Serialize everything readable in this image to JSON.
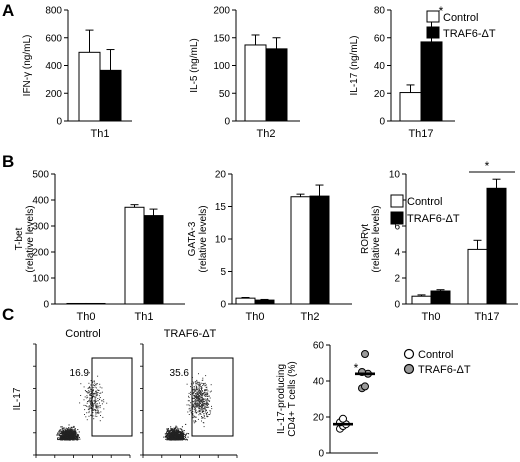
{
  "panels": {
    "a": "A",
    "b": "B",
    "c": "C"
  },
  "legend": {
    "control": "Control",
    "traf6": "TRAF6-ΔT"
  },
  "colors": {
    "control": "#ffffff",
    "traf6": "#000000",
    "axis": "#000000",
    "dot_control": "#ffffff",
    "dot_traf6": "#9a9a9a"
  },
  "chart_data": [
    {
      "type": "bar",
      "panel": "A",
      "ylabel": "IFN-γ (ng/mL)",
      "ylim": [
        0,
        800
      ],
      "yticks": [
        0,
        200,
        400,
        600,
        800
      ],
      "categories": [
        "Th1"
      ],
      "series": [
        {
          "name": "Control",
          "values": [
            495
          ],
          "errors": [
            160
          ]
        },
        {
          "name": "TRAF6-ΔT",
          "values": [
            365
          ],
          "errors": [
            150
          ]
        }
      ]
    },
    {
      "type": "bar",
      "panel": "A",
      "ylabel": "IL-5 (ng/mL)",
      "ylim": [
        0,
        200
      ],
      "yticks": [
        0,
        50,
        100,
        150,
        200
      ],
      "categories": [
        "Th2"
      ],
      "series": [
        {
          "name": "Control",
          "values": [
            137
          ],
          "errors": [
            18
          ]
        },
        {
          "name": "TRAF6-ΔT",
          "values": [
            130
          ],
          "errors": [
            20
          ]
        }
      ]
    },
    {
      "type": "bar",
      "panel": "A",
      "ylabel": "IL-17 (ng/mL)",
      "ylim": [
        0,
        80
      ],
      "yticks": [
        0,
        20,
        40,
        60,
        80
      ],
      "categories": [
        "Th17"
      ],
      "series": [
        {
          "name": "Control",
          "values": [
            20.5
          ],
          "errors": [
            5.5
          ]
        },
        {
          "name": "TRAF6-ΔT",
          "values": [
            57
          ],
          "errors": [
            15
          ]
        }
      ],
      "annotations": [
        "*"
      ],
      "legend": "top-right"
    },
    {
      "type": "bar",
      "panel": "B",
      "ylabel": [
        "T-bet",
        "(relative levels)"
      ],
      "ylim": [
        0,
        500
      ],
      "yticks": [
        0,
        100,
        200,
        300,
        400,
        500
      ],
      "categories": [
        "Th0",
        "Th1"
      ],
      "series": [
        {
          "name": "Control",
          "values": [
            2,
            372
          ],
          "errors": [
            0,
            10
          ]
        },
        {
          "name": "TRAF6-ΔT",
          "values": [
            2,
            340
          ],
          "errors": [
            0,
            25
          ]
        }
      ]
    },
    {
      "type": "bar",
      "panel": "B",
      "ylabel": [
        "GATA-3",
        "(relative levels)"
      ],
      "ylim": [
        0,
        20
      ],
      "yticks": [
        0,
        5,
        10,
        15,
        20
      ],
      "categories": [
        "Th0",
        "Th2"
      ],
      "series": [
        {
          "name": "Control",
          "values": [
            0.9,
            16.5
          ],
          "errors": [
            0.1,
            0.4
          ]
        },
        {
          "name": "TRAF6-ΔT",
          "values": [
            0.6,
            16.6
          ],
          "errors": [
            0.1,
            1.7
          ]
        }
      ]
    },
    {
      "type": "bar",
      "panel": "B",
      "ylabel": [
        "RORγt",
        "(relative levels)"
      ],
      "ylim": [
        0,
        10
      ],
      "yticks": [
        0,
        2,
        4,
        6,
        8,
        10
      ],
      "categories": [
        "Th0",
        "Th17"
      ],
      "series": [
        {
          "name": "Control",
          "values": [
            0.6,
            4.2
          ],
          "errors": [
            0.1,
            0.7
          ]
        },
        {
          "name": "TRAF6-ΔT",
          "values": [
            1.0,
            8.9
          ],
          "errors": [
            0.1,
            0.7
          ]
        }
      ],
      "annotations": [
        "*"
      ],
      "legend": "top-left"
    },
    {
      "type": "scatter",
      "panel": "C",
      "subtype": "flow-cytometry",
      "title": "Control",
      "ylabel": "IL-17",
      "gate_percent": "16.9",
      "density": "dense cluster lower-left, gated events upper-right"
    },
    {
      "type": "scatter",
      "panel": "C",
      "subtype": "flow-cytometry",
      "title": "TRAF6-ΔT",
      "gate_percent": "35.6",
      "density": "dense cluster lower-left, more gated events upper-right"
    },
    {
      "type": "scatter",
      "panel": "C",
      "ylabel": [
        "IL-17-producing",
        "CD4+ T cells (%)"
      ],
      "ylim": [
        0,
        60
      ],
      "yticks": [
        0,
        20,
        40,
        60
      ],
      "groups": [
        {
          "name": "Control",
          "values": [
            13.5,
            15,
            16,
            17,
            19
          ],
          "median": 16
        },
        {
          "name": "TRAF6-ΔT",
          "values": [
            36,
            37,
            44,
            45,
            55
          ],
          "median": 44
        }
      ],
      "annotations": [
        "*"
      ],
      "legend": "top-right"
    }
  ]
}
